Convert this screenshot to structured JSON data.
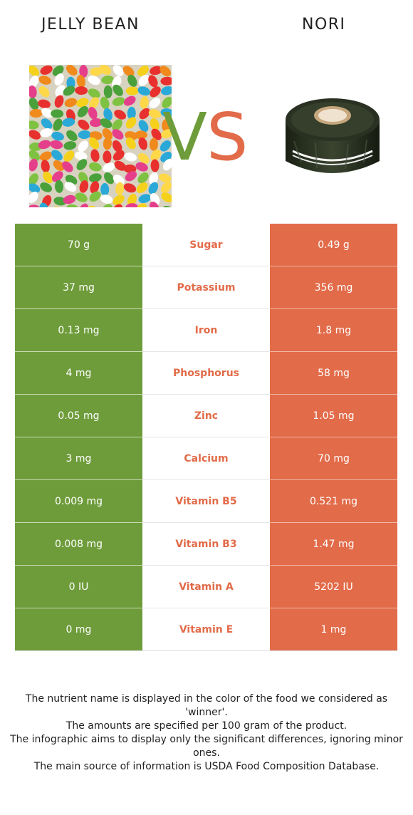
{
  "header": {
    "left_title": "JELLY BEAN",
    "right_title": "NORI",
    "vs_text": "VS"
  },
  "colors": {
    "winner_left": "#6e9c3a",
    "winner_right": "#e26b49",
    "vs_v": "#6e9c3a",
    "vs_s": "#e26b49"
  },
  "images": {
    "left": "jelly-bean-photo",
    "right": "nori-roll-photo"
  },
  "rows": [
    {
      "left": "70 g",
      "nutrient": "Sugar",
      "right": "0.49 g"
    },
    {
      "left": "37 mg",
      "nutrient": "Potassium",
      "right": "356 mg"
    },
    {
      "left": "0.13 mg",
      "nutrient": "Iron",
      "right": "1.8 mg"
    },
    {
      "left": "4 mg",
      "nutrient": "Phosphorus",
      "right": "58 mg"
    },
    {
      "left": "0.05 mg",
      "nutrient": "Zinc",
      "right": "1.05 mg"
    },
    {
      "left": "3 mg",
      "nutrient": "Calcium",
      "right": "70 mg"
    },
    {
      "left": "0.009 mg",
      "nutrient": "Vitamin B5",
      "right": "0.521 mg"
    },
    {
      "left": "0.008 mg",
      "nutrient": "Vitamin B3",
      "right": "1.47 mg"
    },
    {
      "left": "0 IU",
      "nutrient": "Vitamin A",
      "right": "5202 IU"
    },
    {
      "left": "0 mg",
      "nutrient": "Vitamin E",
      "right": "1 mg"
    }
  ],
  "footer": {
    "line1": "The nutrient name is displayed in the color of the food we considered as 'winner'.",
    "line2": "The amounts are specified per 100 gram of the product.",
    "line3": "The infographic aims to display only the significant differences, ignoring minor ones.",
    "line4": "The main source of information is USDA Food Composition Database."
  }
}
